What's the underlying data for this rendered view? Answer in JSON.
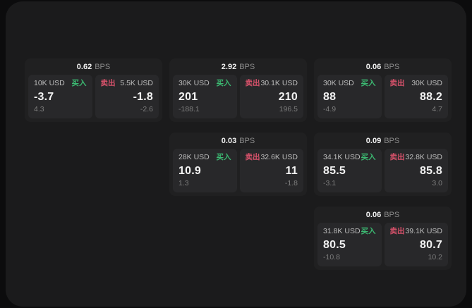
{
  "labels": {
    "bps_unit": "BPS",
    "buy": "买入",
    "sell": "卖出"
  },
  "colors": {
    "outer_background": "#0c0c0d",
    "window_background": "#1b1b1c",
    "card_background": "#202021",
    "panel_background": "#28282a",
    "buy_green": "#3cba72",
    "sell_red": "#d9526b"
  },
  "cards": [
    {
      "row": 0,
      "col": 0,
      "bps": "0.62",
      "buy": {
        "amount": "10K USD",
        "value": "-3.7",
        "sub": "4.3"
      },
      "sell": {
        "amount": "5.5K USD",
        "value": "-1.8",
        "sub": "-2.6"
      }
    },
    {
      "row": 0,
      "col": 1,
      "bps": "2.92",
      "buy": {
        "amount": "30K USD",
        "value": "201",
        "sub": "-188.1"
      },
      "sell": {
        "amount": "30.1K USD",
        "value": "210",
        "sub": "196.5"
      }
    },
    {
      "row": 0,
      "col": 2,
      "bps": "0.06",
      "buy": {
        "amount": "30K USD",
        "value": "88",
        "sub": "-4.9"
      },
      "sell": {
        "amount": "30K USD",
        "value": "88.2",
        "sub": "4.7"
      }
    },
    {
      "row": 1,
      "col": 1,
      "bps": "0.03",
      "buy": {
        "amount": "28K USD",
        "value": "10.9",
        "sub": "1.3"
      },
      "sell": {
        "amount": "32.6K USD",
        "value": "11",
        "sub": "-1.8"
      }
    },
    {
      "row": 1,
      "col": 2,
      "bps": "0.09",
      "buy": {
        "amount": "34.1K USD",
        "value": "85.5",
        "sub": "-3.1"
      },
      "sell": {
        "amount": "32.8K USD",
        "value": "85.8",
        "sub": "3.0"
      }
    },
    {
      "row": 2,
      "col": 2,
      "bps": "0.06",
      "buy": {
        "amount": "31.8K USD",
        "value": "80.5",
        "sub": "-10.8"
      },
      "sell": {
        "amount": "39.1K USD",
        "value": "80.7",
        "sub": "10.2"
      }
    }
  ]
}
